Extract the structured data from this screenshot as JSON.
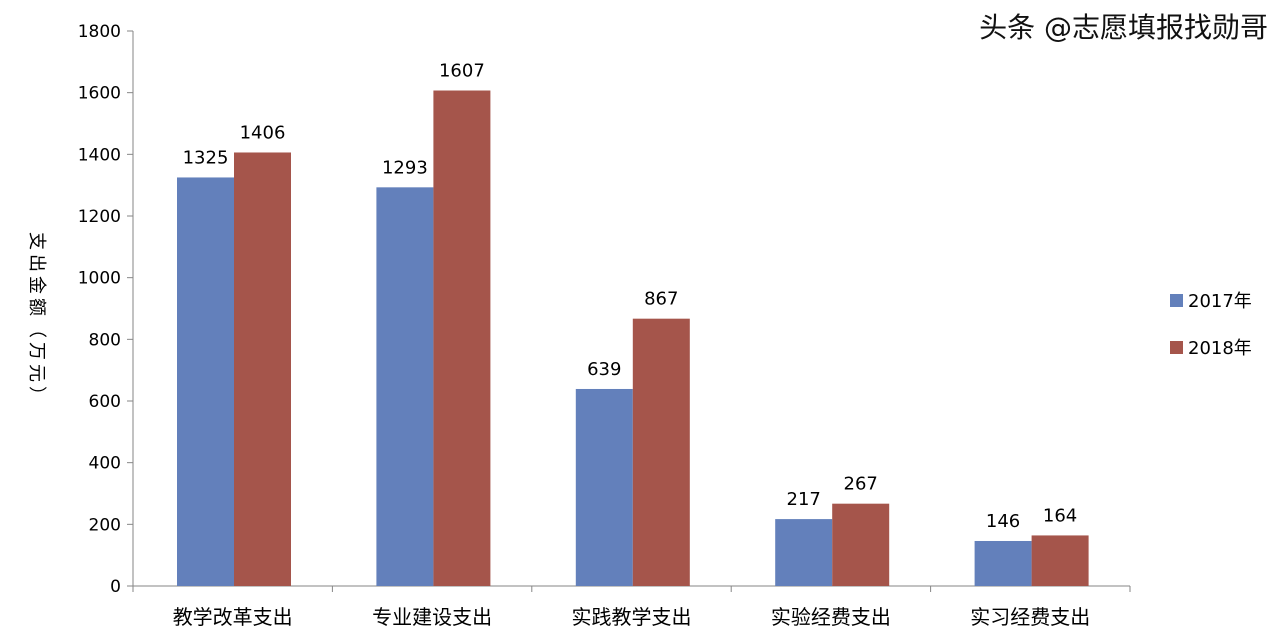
{
  "chart_data": {
    "type": "bar",
    "categories": [
      "教学改革支出",
      "专业建设支出",
      "实践教学支出",
      "实验经费支出",
      "实习经费支出"
    ],
    "series": [
      {
        "name": "2017年",
        "values": [
          1325,
          1293,
          639,
          217,
          146
        ],
        "color": "#6380bb"
      },
      {
        "name": "2018年",
        "values": [
          1406,
          1607,
          867,
          267,
          164
        ],
        "color": "#a5554b"
      }
    ],
    "title": "",
    "xlabel": "",
    "ylabel": "支出金额（万元）",
    "ylim": [
      0,
      1800
    ],
    "yticks": [
      0,
      200,
      400,
      600,
      800,
      1000,
      1200,
      1400,
      1600,
      1800
    ],
    "grid": false,
    "legend": "right"
  },
  "watermark": "头条 @志愿填报找勋哥"
}
